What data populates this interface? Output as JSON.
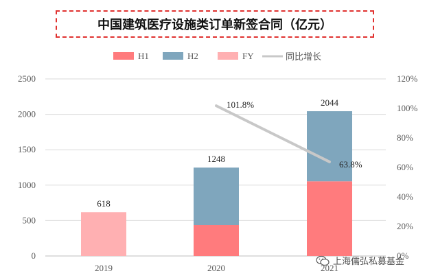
{
  "title": "中国建筑医疗设施类订单新签合同（亿元）",
  "watermark": "上海儒弘私募基金",
  "legend": [
    {
      "key": "H1",
      "label": "H1",
      "color": "#ff7b7d",
      "kind": "rect"
    },
    {
      "key": "H2",
      "label": "H2",
      "color": "#7fa6bd",
      "kind": "rect"
    },
    {
      "key": "FY",
      "label": "FY",
      "color": "#ffb0b2",
      "kind": "rect"
    },
    {
      "key": "yoy",
      "label": "同比增长",
      "color": "#c8c8c8",
      "kind": "line"
    }
  ],
  "chart_data": {
    "type": "bar",
    "stacked": true,
    "categories": [
      "2019",
      "2020",
      "2021"
    ],
    "series": [
      {
        "name": "H1",
        "values": [
          null,
          436,
          1054
        ],
        "color": "#ff7b7d"
      },
      {
        "name": "H2",
        "values": [
          null,
          812,
          990
        ],
        "color": "#7fa6bd"
      },
      {
        "name": "FY",
        "values": [
          618,
          null,
          null
        ],
        "color": "#ffb0b2"
      }
    ],
    "totals": [
      618,
      1248,
      2044
    ],
    "total_labels": [
      "618",
      "1248",
      "2044"
    ],
    "line_series": {
      "name": "同比增长",
      "axis": "right",
      "color": "#c8c8c8",
      "x": [
        "2020",
        "2021"
      ],
      "values": [
        101.8,
        63.8
      ],
      "labels": [
        "101.8%",
        "63.8%"
      ]
    },
    "y_left": {
      "ylim": [
        0,
        2500
      ],
      "ticks": [
        0,
        500,
        1000,
        1500,
        2000,
        2500
      ],
      "tick_labels": [
        "0",
        "500",
        "1000",
        "1500",
        "2000",
        "2500"
      ]
    },
    "y_right": {
      "ylim": [
        0,
        120
      ],
      "ticks": [
        0,
        20,
        40,
        60,
        80,
        100,
        120
      ],
      "tick_labels": [
        "0%",
        "20%",
        "40%",
        "60%",
        "80%",
        "100%",
        "120%"
      ]
    },
    "grid": true,
    "legend_position": "top"
  }
}
